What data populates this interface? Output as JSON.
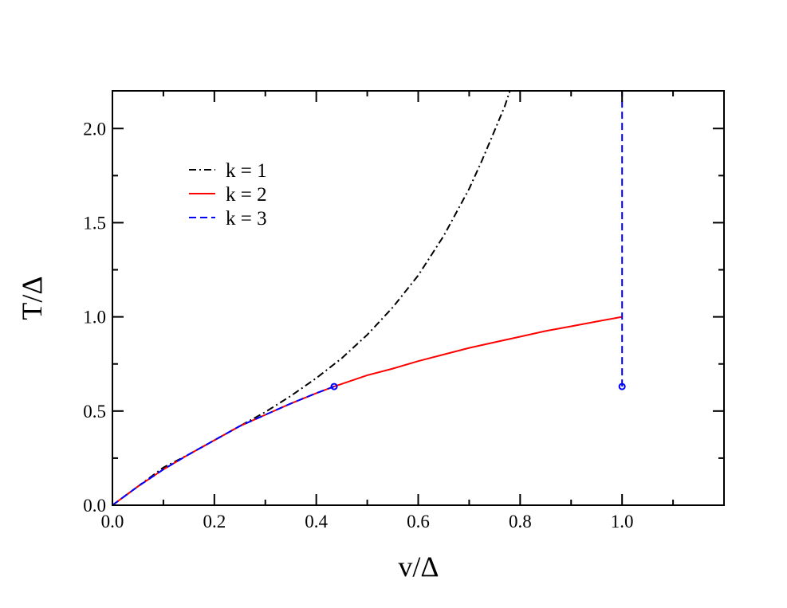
{
  "chart_data": {
    "type": "line",
    "title": "",
    "xlabel": "v/Δ",
    "ylabel": "T/Δ",
    "xlim": [
      0.0,
      1.2
    ],
    "ylim": [
      0.0,
      2.2
    ],
    "x_ticks": [
      {
        "value": 0.0,
        "label": "0.0"
      },
      {
        "value": 0.2,
        "label": "0.2"
      },
      {
        "value": 0.4,
        "label": "0.4"
      },
      {
        "value": 0.6,
        "label": "0.6"
      },
      {
        "value": 0.8,
        "label": "0.8"
      },
      {
        "value": 1.0,
        "label": "1.0"
      }
    ],
    "y_ticks": [
      {
        "value": 0.0,
        "label": "0.0"
      },
      {
        "value": 0.5,
        "label": "0.5"
      },
      {
        "value": 1.0,
        "label": "1.0"
      },
      {
        "value": 1.5,
        "label": "1.5"
      },
      {
        "value": 2.0,
        "label": "2.0"
      }
    ],
    "grid": false,
    "legend_position": "top-left",
    "series": [
      {
        "name": "k = 1",
        "color": "#000000",
        "style": "dash-dot",
        "x": [
          0.0,
          0.05,
          0.1,
          0.15,
          0.2,
          0.25,
          0.3,
          0.35,
          0.4,
          0.45,
          0.5,
          0.55,
          0.6,
          0.65,
          0.7,
          0.725,
          0.75,
          0.77,
          0.78
        ],
        "y": [
          0.0,
          0.1,
          0.2,
          0.27,
          0.345,
          0.42,
          0.495,
          0.58,
          0.675,
          0.78,
          0.905,
          1.05,
          1.22,
          1.43,
          1.68,
          1.83,
          1.99,
          2.12,
          2.2
        ]
      },
      {
        "name": "k = 2",
        "color": "#ff0000",
        "style": "solid",
        "x": [
          0.0,
          0.05,
          0.1,
          0.15,
          0.2,
          0.25,
          0.3,
          0.35,
          0.4,
          0.435,
          0.5,
          0.55,
          0.6,
          0.65,
          0.7,
          0.75,
          0.8,
          0.85,
          0.9,
          0.95,
          1.0
        ],
        "y": [
          0.0,
          0.1,
          0.19,
          0.27,
          0.345,
          0.42,
          0.48,
          0.54,
          0.595,
          0.63,
          0.69,
          0.725,
          0.765,
          0.8,
          0.835,
          0.865,
          0.895,
          0.925,
          0.95,
          0.975,
          1.0
        ]
      },
      {
        "name": "k = 3",
        "color": "#0000ff",
        "style": "dashed",
        "segments": [
          {
            "x": [
              0.0,
              0.05,
              0.1,
              0.15,
              0.2,
              0.25,
              0.3,
              0.35,
              0.4,
              0.435
            ],
            "y": [
              0.0,
              0.1,
              0.19,
              0.27,
              0.345,
              0.42,
              0.48,
              0.54,
              0.595,
              0.63
            ]
          },
          {
            "x": [
              1.0,
              1.0
            ],
            "y": [
              0.63,
              2.2
            ]
          }
        ],
        "markers": [
          {
            "x": 0.435,
            "y": 0.63
          },
          {
            "x": 1.0,
            "y": 0.63
          }
        ]
      }
    ]
  }
}
